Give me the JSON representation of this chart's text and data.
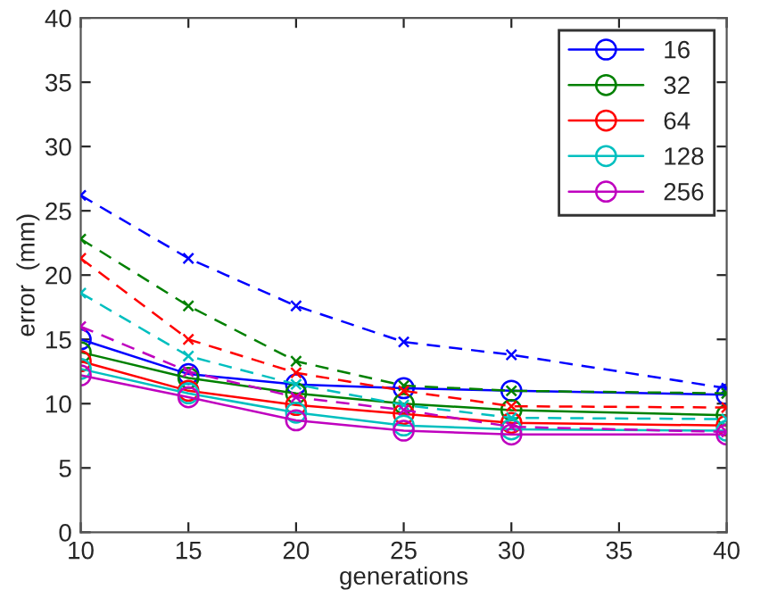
{
  "chart_data": {
    "type": "line",
    "xlabel": "generations",
    "ylabel": "error  (mm)",
    "x": [
      10,
      15,
      20,
      25,
      30,
      40
    ],
    "xlim": [
      10,
      40
    ],
    "xticks": [
      10,
      15,
      20,
      25,
      30,
      35,
      40
    ],
    "ylim": [
      0,
      40
    ],
    "yticks": [
      0,
      5,
      10,
      15,
      20,
      25,
      30,
      35,
      40
    ],
    "grid": false,
    "legend": "top right",
    "series": [
      {
        "name": "16",
        "color": "#0000ff",
        "marker": "circle",
        "line_style": "solid",
        "values": [
          15,
          12.3,
          11.5,
          11.2,
          11.0,
          10.7
        ]
      },
      {
        "name": "32",
        "color": "#008000",
        "marker": "circle",
        "line_style": "solid",
        "values": [
          14,
          12,
          10.8,
          10.0,
          9.5,
          9.1
        ]
      },
      {
        "name": "64",
        "color": "#ff0000",
        "marker": "circle",
        "line_style": "solid",
        "values": [
          13.3,
          11,
          9.9,
          9.2,
          8.5,
          8.3
        ]
      },
      {
        "name": "128",
        "color": "#00bfbf",
        "marker": "circle",
        "line_style": "solid",
        "values": [
          12.7,
          10.8,
          9.3,
          8.3,
          8.0,
          7.9
        ]
      },
      {
        "name": "256",
        "color": "#bf00bf",
        "marker": "circle",
        "line_style": "solid",
        "values": [
          12.2,
          10.5,
          8.7,
          7.9,
          7.6,
          7.6
        ]
      },
      {
        "color": "#0000ff",
        "marker": "cross",
        "line_style": "dashed",
        "values": [
          26.2,
          21.3,
          17.6,
          14.8,
          13.8,
          11.2
        ]
      },
      {
        "color": "#008000",
        "marker": "cross",
        "line_style": "dashed",
        "values": [
          22.8,
          17.6,
          13.3,
          11.4,
          11.0,
          10.8
        ]
      },
      {
        "color": "#ff0000",
        "marker": "cross",
        "line_style": "dashed",
        "values": [
          21.3,
          15.0,
          12.4,
          11.0,
          9.8,
          9.7
        ]
      },
      {
        "color": "#00bfbf",
        "marker": "cross",
        "line_style": "dashed",
        "values": [
          18.6,
          13.7,
          11.5,
          9.9,
          8.9,
          8.8
        ]
      },
      {
        "color": "#bf00bf",
        "marker": "cross",
        "line_style": "dashed",
        "values": [
          16.0,
          12.5,
          10.5,
          9.5,
          8.2,
          7.8
        ]
      }
    ]
  }
}
